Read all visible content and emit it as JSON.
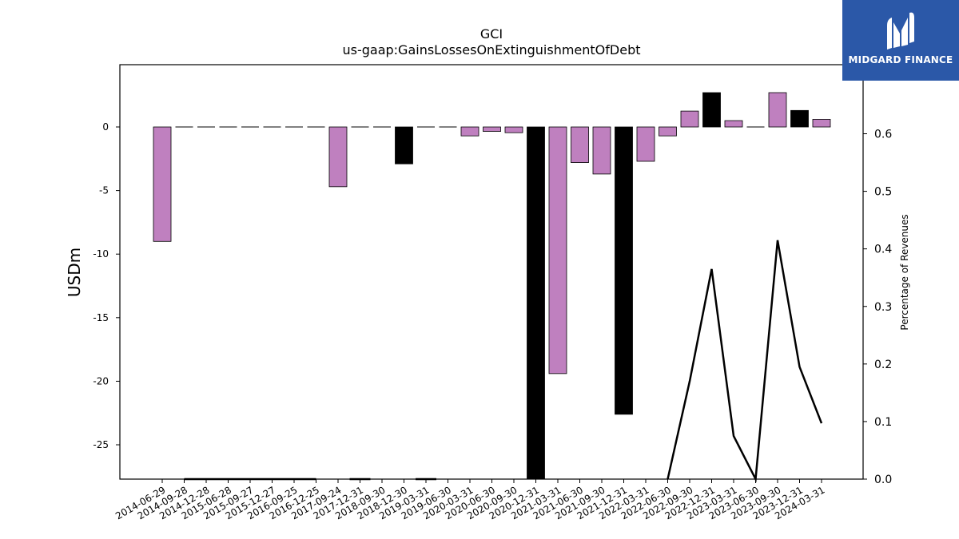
{
  "colors": {
    "bar_purple": "#bf80bf",
    "bar_black": "#000000",
    "line": "#000000",
    "logo_bg": "#2b58a8"
  },
  "logo": {
    "text": "MIDGARD FINANCE",
    "icon": "midgard-logo-icon"
  },
  "chart_data": {
    "type": "bar",
    "title": "GCI",
    "subtitle": "us-gaap:GainsLossesOnExtinguishmentOfDebt",
    "ylabel": "USDm",
    "y2label": "Percentage of Revenues",
    "ylim": [
      -27.7,
      4.9
    ],
    "y2lim": [
      0.0,
      0.72
    ],
    "yticks": [
      "-25",
      "-20",
      "-15",
      "-10",
      "-5",
      "0"
    ],
    "y2ticks": [
      "0.0",
      "0.1",
      "0.2",
      "0.3",
      "0.4",
      "0.5",
      "0.6"
    ],
    "grid": false,
    "categories": [
      "2014-06-29",
      "2014-09-28",
      "2014-12-28",
      "2015-06-28",
      "2015-09-27",
      "2015-12-27",
      "2016-09-25",
      "2016-12-25",
      "2017-09-24",
      "2017-12-31",
      "2018-09-30",
      "2018-12-30",
      "2019-03-31",
      "2019-06-30",
      "2020-03-31",
      "2020-06-30",
      "2020-09-30",
      "2020-12-31",
      "2021-03-31",
      "2021-06-30",
      "2021-09-30",
      "2021-12-31",
      "2022-03-31",
      "2022-06-30",
      "2022-09-30",
      "2022-12-31",
      "2023-03-31",
      "2023-06-30",
      "2023-09-30",
      "2023-12-31",
      "2024-03-31"
    ],
    "series": [
      {
        "type": "bar",
        "values": [
          -9.0,
          0.0,
          0.0,
          0.0,
          0.0,
          0.0,
          0.0,
          0.0,
          -4.7,
          0.0,
          0.0,
          -2.9,
          0.0,
          0.0,
          -0.7,
          -0.35,
          -0.45,
          -27.7,
          -19.4,
          -2.8,
          -3.7,
          -22.6,
          -2.7,
          -0.7,
          1.25,
          2.7,
          0.5,
          0.0,
          2.7,
          1.3,
          0.6
        ],
        "highlight": [
          false,
          false,
          false,
          false,
          false,
          false,
          false,
          false,
          false,
          false,
          false,
          true,
          false,
          false,
          false,
          false,
          false,
          true,
          false,
          false,
          false,
          true,
          false,
          false,
          false,
          true,
          false,
          false,
          false,
          true,
          false
        ]
      },
      {
        "type": "line",
        "axis": "right",
        "values": [
          null,
          0,
          0,
          0,
          0,
          0,
          0,
          0,
          null,
          0,
          null,
          null,
          0,
          null,
          null,
          null,
          null,
          null,
          null,
          null,
          null,
          null,
          null,
          0,
          0.17,
          0.365,
          0.075,
          0.0,
          0.415,
          0.195,
          0.097
        ]
      }
    ]
  }
}
